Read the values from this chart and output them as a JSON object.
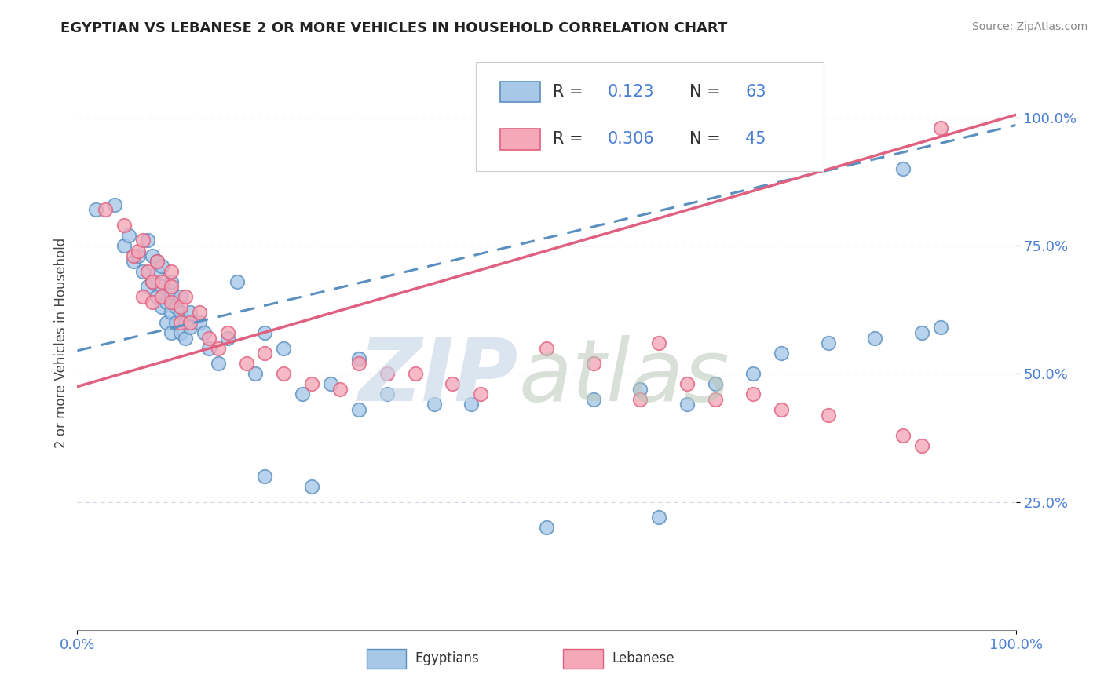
{
  "title": "EGYPTIAN VS LEBANESE 2 OR MORE VEHICLES IN HOUSEHOLD CORRELATION CHART",
  "source": "Source: ZipAtlas.com",
  "ylabel": "2 or more Vehicles in Household",
  "egyptian_color": "#a8c8e8",
  "lebanese_color": "#f4a8b8",
  "egyptian_edge_color": "#5a8fc0",
  "lebanese_edge_color": "#e06080",
  "egyptian_line_color": "#5a8fc0",
  "lebanese_line_color": "#e06080",
  "watermark_zip_color": "#c8d8e8",
  "watermark_atlas_color": "#b8c8b8",
  "background_color": "#ffffff",
  "grid_color": "#d0d8e8",
  "ytick_color": "#4a7fd4",
  "xtick_color": "#4a7fd4",
  "legend_r_color": "#4a7fd4",
  "legend_n_color": "#4a7fd4",
  "legend_label_color": "#333333",
  "xlim": [
    0.0,
    1.0
  ],
  "ylim": [
    0.0,
    1.12
  ],
  "yticks": [
    0.25,
    0.5,
    0.75,
    1.0
  ],
  "ytick_labels": [
    "25.0%",
    "50.0%",
    "75.0%",
    "100.0%"
  ],
  "eg_line_x0": 0.0,
  "eg_line_y0": 0.545,
  "eg_line_x1": 1.0,
  "eg_line_y1": 0.985,
  "lb_line_x0": 0.0,
  "lb_line_y0": 0.475,
  "lb_line_x1": 1.0,
  "lb_line_y1": 1.005,
  "eg_points_x": [
    0.02,
    0.04,
    0.05,
    0.055,
    0.06,
    0.065,
    0.07,
    0.075,
    0.075,
    0.08,
    0.08,
    0.085,
    0.085,
    0.085,
    0.09,
    0.09,
    0.09,
    0.095,
    0.095,
    0.1,
    0.1,
    0.1,
    0.1,
    0.105,
    0.105,
    0.11,
    0.11,
    0.11,
    0.115,
    0.115,
    0.12,
    0.12,
    0.13,
    0.135,
    0.14,
    0.15,
    0.16,
    0.17,
    0.19,
    0.2,
    0.22,
    0.24,
    0.27,
    0.3,
    0.33,
    0.38,
    0.42,
    0.5,
    0.55,
    0.6,
    0.62,
    0.65,
    0.68,
    0.72,
    0.75,
    0.8,
    0.85,
    0.88,
    0.9,
    0.92,
    0.2,
    0.25,
    0.3
  ],
  "eg_points_y": [
    0.82,
    0.83,
    0.75,
    0.77,
    0.72,
    0.73,
    0.7,
    0.67,
    0.76,
    0.68,
    0.73,
    0.65,
    0.7,
    0.72,
    0.63,
    0.67,
    0.71,
    0.6,
    0.64,
    0.58,
    0.62,
    0.66,
    0.68,
    0.6,
    0.63,
    0.62,
    0.65,
    0.58,
    0.6,
    0.57,
    0.62,
    0.59,
    0.6,
    0.58,
    0.55,
    0.52,
    0.57,
    0.68,
    0.5,
    0.58,
    0.55,
    0.46,
    0.48,
    0.53,
    0.46,
    0.44,
    0.44,
    0.2,
    0.45,
    0.47,
    0.22,
    0.44,
    0.48,
    0.5,
    0.54,
    0.56,
    0.57,
    0.9,
    0.58,
    0.59,
    0.3,
    0.28,
    0.43
  ],
  "lb_points_x": [
    0.03,
    0.05,
    0.06,
    0.065,
    0.07,
    0.07,
    0.075,
    0.08,
    0.08,
    0.085,
    0.09,
    0.09,
    0.1,
    0.1,
    0.1,
    0.11,
    0.11,
    0.115,
    0.12,
    0.13,
    0.14,
    0.15,
    0.16,
    0.18,
    0.2,
    0.22,
    0.25,
    0.28,
    0.3,
    0.33,
    0.36,
    0.4,
    0.43,
    0.5,
    0.55,
    0.6,
    0.62,
    0.65,
    0.68,
    0.72,
    0.75,
    0.8,
    0.88,
    0.9,
    0.92
  ],
  "lb_points_y": [
    0.82,
    0.79,
    0.73,
    0.74,
    0.76,
    0.65,
    0.7,
    0.68,
    0.64,
    0.72,
    0.65,
    0.68,
    0.7,
    0.64,
    0.67,
    0.63,
    0.6,
    0.65,
    0.6,
    0.62,
    0.57,
    0.55,
    0.58,
    0.52,
    0.54,
    0.5,
    0.48,
    0.47,
    0.52,
    0.5,
    0.5,
    0.48,
    0.46,
    0.55,
    0.52,
    0.45,
    0.56,
    0.48,
    0.45,
    0.46,
    0.43,
    0.42,
    0.38,
    0.36,
    0.98
  ]
}
